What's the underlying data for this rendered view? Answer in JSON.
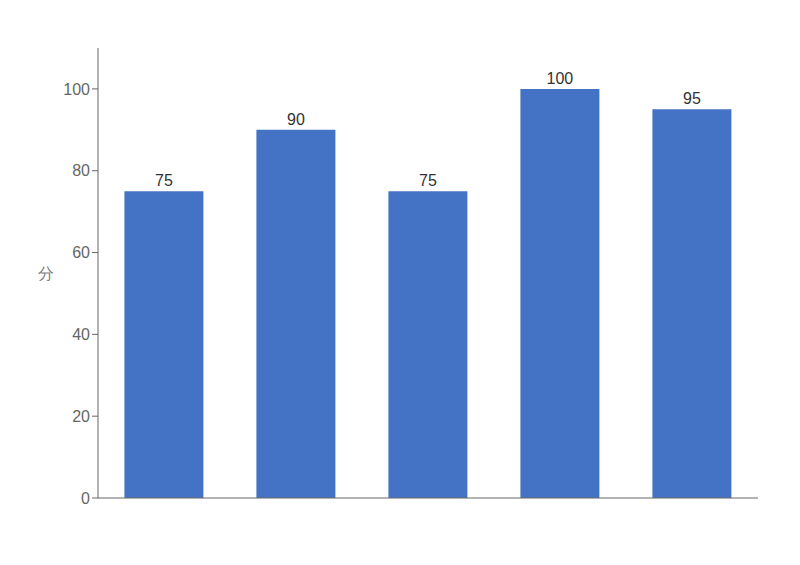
{
  "chart_data": {
    "type": "bar",
    "categories": [
      null,
      null,
      null,
      null,
      null
    ],
    "values": [
      75,
      90,
      75,
      100,
      95
    ],
    "color": "#4472C4",
    "ylim": [
      0,
      110
    ],
    "yticks": [
      0,
      20,
      40,
      60,
      80,
      100
    ],
    "ylabel": "分",
    "data_labels": true,
    "grid": false,
    "tick_labels": "y"
  }
}
